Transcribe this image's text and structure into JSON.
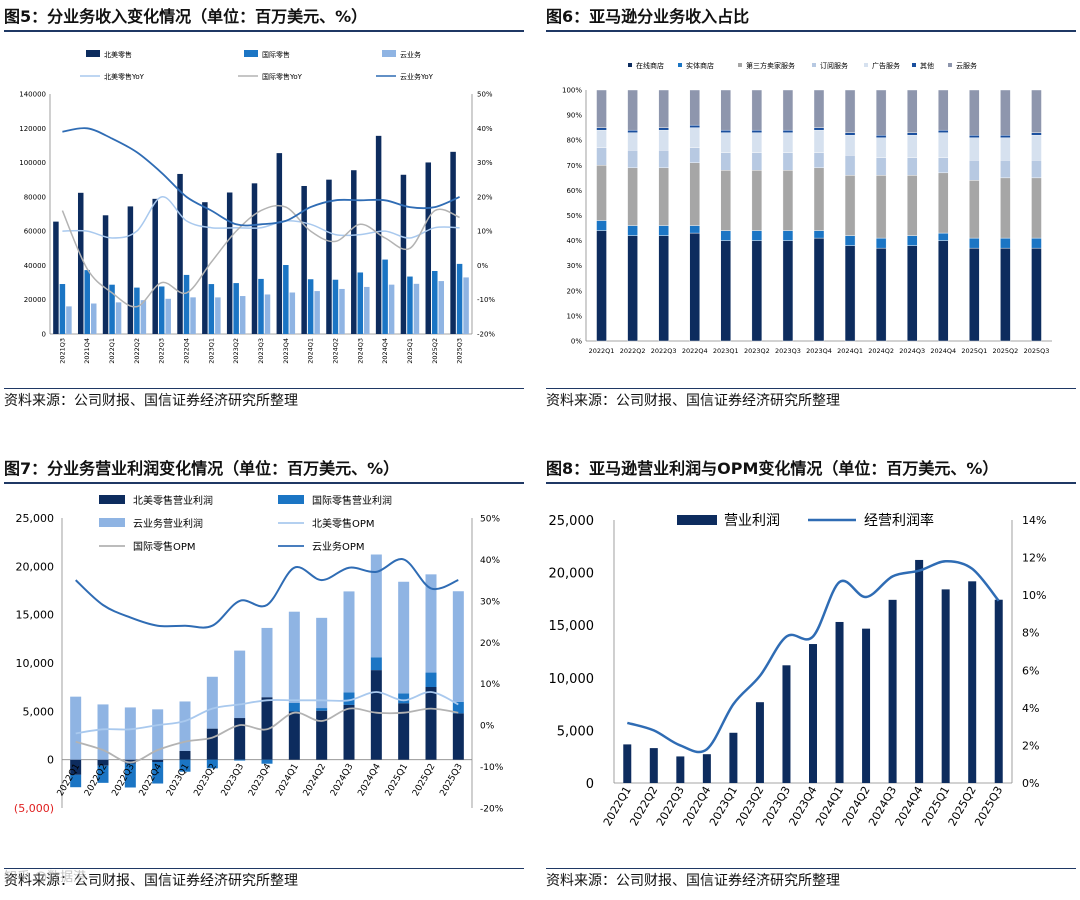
{
  "sources": {
    "fig5": "资料来源：公司财报、国信证券经济研究所整理",
    "fig6": "资料来源：公司财报、国信证券经济研究所整理",
    "fig7": "资料来源：公司财报、国信证券经济研究所整理",
    "fig8": "资料来源：公司财报、国信证券经济研究所整理"
  },
  "watermark": "知乎 @数据港",
  "colors": {
    "navy": "#0d2c5e",
    "blue": "#1b75c4",
    "light": "#8fb4e3",
    "lightline": "#a9c9ee",
    "gray": "#b3b3b3",
    "line": "#2f6cb4",
    "red": "#e02020"
  },
  "chart_data": [
    {
      "id": "fig5",
      "type": "bar",
      "title": "图5：分业务收入变化情况（单位：百万美元、%）",
      "categories": [
        "2021Q3",
        "2021Q4",
        "2022Q1",
        "2022Q2",
        "2022Q3",
        "2022Q4",
        "2023Q1",
        "2023Q2",
        "2023Q3",
        "2023Q4",
        "2024Q1",
        "2024Q2",
        "2024Q3",
        "2024Q4",
        "2025Q1",
        "2025Q2",
        "2025Q3"
      ],
      "series": [
        {
          "name": "北美零售",
          "kind": "bar",
          "values": [
            65557,
            82360,
            69244,
            74430,
            78843,
            93363,
            76881,
            82546,
            87887,
            105514,
            86341,
            90033,
            95537,
            115586,
            92887,
            100068,
            106267
          ]
        },
        {
          "name": "国际零售",
          "kind": "bar",
          "values": [
            29150,
            37272,
            28759,
            27065,
            27720,
            34463,
            29123,
            29697,
            32137,
            40243,
            31935,
            31663,
            35888,
            43420,
            33513,
            36761,
            40896
          ]
        },
        {
          "name": "云业务",
          "kind": "bar",
          "values": [
            16110,
            17780,
            18441,
            19739,
            20538,
            21378,
            21354,
            22140,
            23059,
            24204,
            25037,
            26281,
            27452,
            28786,
            29267,
            30873,
            33006
          ]
        },
        {
          "name": "北美零售YoY",
          "kind": "line",
          "axis": "right",
          "values": [
            10,
            10,
            8,
            10,
            20,
            13,
            11,
            11,
            11,
            13,
            12,
            9,
            9,
            10,
            8,
            11,
            11
          ]
        },
        {
          "name": "国际零售YoY",
          "kind": "line",
          "axis": "right",
          "values": [
            16,
            -1,
            -8,
            -12,
            -5,
            -8,
            1,
            10,
            16,
            17,
            10,
            7,
            12,
            8,
            5,
            16,
            14
          ]
        },
        {
          "name": "云业务YoY",
          "kind": "line",
          "axis": "right",
          "values": [
            39,
            40,
            37,
            33,
            27,
            20,
            16,
            12,
            12,
            13,
            17,
            19,
            19,
            19,
            17,
            17,
            20
          ]
        }
      ],
      "left_axis": {
        "min": 0,
        "max": 140000,
        "ticks": [
          "0",
          "20000",
          "40000",
          "60000",
          "80000",
          "100000",
          "120000",
          "140000"
        ]
      },
      "right_axis": {
        "min": -20,
        "max": 50,
        "ticks": [
          "-20%",
          "-10%",
          "0%",
          "10%",
          "20%",
          "30%",
          "40%",
          "50%"
        ]
      }
    },
    {
      "id": "fig6",
      "type": "bar",
      "stacked": true,
      "title": "图6：亚马逊分业务收入占比",
      "categories": [
        "2022Q1",
        "2022Q2",
        "2022Q3",
        "2022Q4",
        "2023Q1",
        "2023Q2",
        "2023Q3",
        "2023Q4",
        "2024Q1",
        "2024Q2",
        "2024Q3",
        "2024Q4",
        "2025Q1",
        "2025Q2",
        "2025Q3"
      ],
      "series": [
        {
          "name": "在线商店",
          "color": "#0d2c5e",
          "values": [
            44,
            42,
            42,
            43,
            40,
            40,
            40,
            41,
            38,
            37,
            38,
            40,
            37,
            37,
            37
          ]
        },
        {
          "name": "实体商店",
          "color": "#1b75c4",
          "values": [
            4,
            4,
            4,
            3,
            4,
            4,
            4,
            3,
            4,
            4,
            4,
            3,
            4,
            4,
            4
          ]
        },
        {
          "name": "第三方卖家服务",
          "color": "#a6a6a6",
          "values": [
            22,
            23,
            23,
            25,
            24,
            24,
            24,
            25,
            24,
            25,
            24,
            24,
            23,
            24,
            24
          ]
        },
        {
          "name": "订阅服务",
          "color": "#b7c9e2",
          "values": [
            7,
            7,
            7,
            6,
            7,
            7,
            7,
            6,
            8,
            7,
            7,
            6,
            8,
            7,
            7
          ]
        },
        {
          "name": "广告服务",
          "color": "#d6e1ef",
          "values": [
            7,
            7,
            8,
            8,
            8,
            8,
            8,
            9,
            8,
            8,
            9,
            10,
            9,
            9,
            10
          ]
        },
        {
          "name": "其他",
          "color": "#1a4f9e",
          "values": [
            1,
            1,
            1,
            1,
            1,
            1,
            1,
            1,
            1,
            1,
            1,
            1,
            1,
            1,
            1
          ]
        },
        {
          "name": "云服务",
          "color": "#8e96ad",
          "values": [
            15,
            16,
            15,
            14,
            16,
            16,
            16,
            15,
            17,
            18,
            17,
            16,
            18,
            18,
            17
          ]
        }
      ],
      "axis": {
        "min": 0,
        "max": 100,
        "ticks": [
          "0%",
          "10%",
          "20%",
          "30%",
          "40%",
          "50%",
          "60%",
          "70%",
          "80%",
          "90%",
          "100%"
        ]
      }
    },
    {
      "id": "fig7",
      "type": "bar",
      "title": "图7：分业务营业利润变化情况（单位：百万美元、%）",
      "categories": [
        "2022Q1",
        "2022Q2",
        "2022Q3",
        "2022Q4",
        "2023Q1",
        "2023Q2",
        "2023Q3",
        "2023Q4",
        "2024Q1",
        "2024Q2",
        "2024Q3",
        "2024Q4",
        "2025Q1",
        "2025Q2",
        "2025Q3"
      ],
      "series": [
        {
          "name": "北美零售营业利润",
          "kind": "bar",
          "values": [
            -1568,
            -627,
            -412,
            -240,
            898,
            3211,
            4307,
            6461,
            4983,
            5065,
            5663,
            9263,
            5841,
            7517,
            4789
          ]
        },
        {
          "name": "国际零售营业利润",
          "kind": "bar",
          "values": [
            -1281,
            -1771,
            -2466,
            -2228,
            -1247,
            -895,
            -95,
            -419,
            903,
            273,
            1296,
            1329,
            1017,
            1494,
            1199
          ]
        },
        {
          "name": "云业务营业利润",
          "kind": "bar",
          "values": [
            6518,
            5715,
            5403,
            5205,
            5123,
            5365,
            6976,
            7167,
            9421,
            9334,
            10447,
            10632,
            11547,
            10160,
            11435
          ]
        },
        {
          "name": "北美零售OPM",
          "kind": "line",
          "axis": "right",
          "values": [
            -2,
            -1,
            -1,
            0,
            1,
            4,
            5,
            6,
            6,
            6,
            6,
            8,
            6,
            8,
            5
          ]
        },
        {
          "name": "国际零售OPM",
          "kind": "line",
          "axis": "right",
          "values": [
            -4,
            -6,
            -9,
            -6,
            -4,
            -3,
            0,
            -1,
            3,
            1,
            4,
            3,
            3,
            4,
            3
          ]
        },
        {
          "name": "云业务OPM",
          "kind": "line",
          "axis": "right",
          "values": [
            35,
            29,
            26,
            24,
            24,
            24,
            30,
            29,
            38,
            35,
            38,
            37,
            40,
            33,
            35
          ]
        }
      ],
      "left_axis": {
        "min": -5000,
        "max": 25000,
        "ticks": [
          "(5,000)",
          "0",
          "5,000",
          "10,000",
          "15,000",
          "20,000",
          "25,000"
        ]
      },
      "right_axis": {
        "min": -20,
        "max": 50,
        "ticks": [
          "-20%",
          "-10%",
          "0%",
          "10%",
          "20%",
          "30%",
          "40%",
          "50%"
        ]
      }
    },
    {
      "id": "fig8",
      "type": "bar",
      "title": "图8：亚马逊营业利润与OPM变化情况（单位：百万美元、%）",
      "categories": [
        "2022Q1",
        "2022Q2",
        "2022Q3",
        "2022Q4",
        "2023Q1",
        "2023Q2",
        "2023Q3",
        "2023Q4",
        "2024Q1",
        "2024Q2",
        "2024Q3",
        "2024Q4",
        "2025Q1",
        "2025Q2",
        "2025Q3"
      ],
      "series": [
        {
          "name": "营业利润",
          "kind": "bar",
          "values": [
            3669,
            3317,
            2525,
            2737,
            4774,
            7681,
            11188,
            13209,
            15307,
            14672,
            17411,
            21203,
            18405,
            19171,
            17422
          ]
        },
        {
          "name": "经营利润率",
          "kind": "line",
          "axis": "right",
          "values": [
            3.2,
            2.8,
            2.0,
            1.8,
            4.2,
            5.7,
            7.8,
            7.8,
            10.7,
            9.9,
            11.0,
            11.3,
            11.8,
            11.4,
            9.7
          ]
        }
      ],
      "left_axis": {
        "min": 0,
        "max": 25000,
        "ticks": [
          "0",
          "5,000",
          "10,000",
          "15,000",
          "20,000",
          "25,000"
        ]
      },
      "right_axis": {
        "min": 0,
        "max": 14,
        "ticks": [
          "0%",
          "2%",
          "4%",
          "6%",
          "8%",
          "10%",
          "12%",
          "14%"
        ]
      }
    }
  ]
}
